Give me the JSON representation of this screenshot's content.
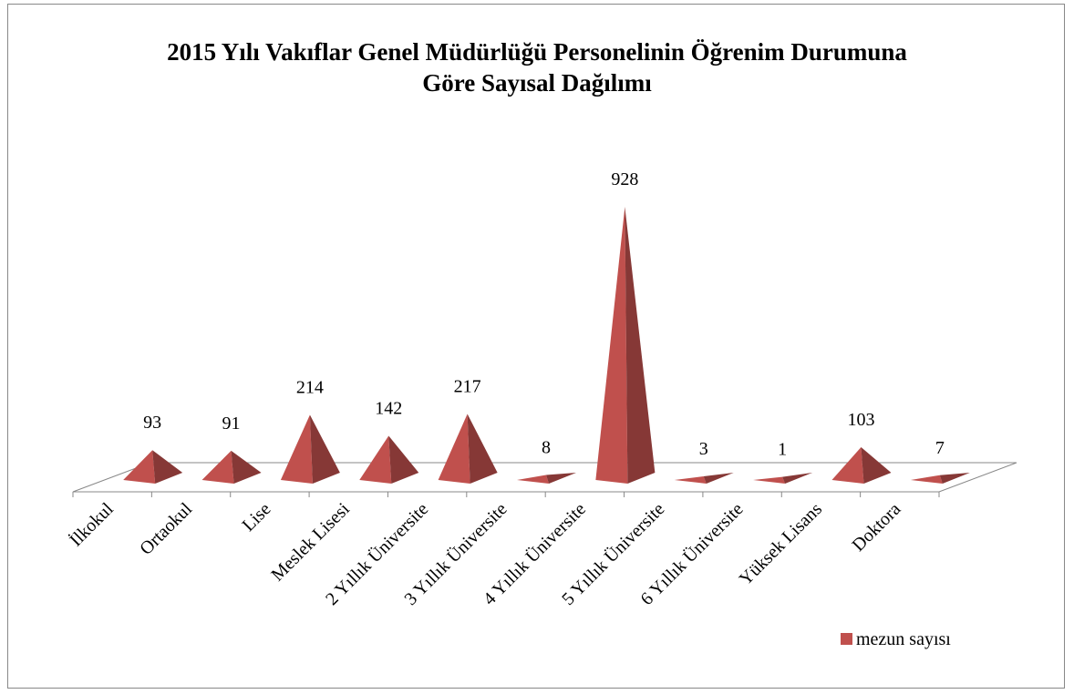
{
  "chart_data": {
    "type": "pyramid",
    "title": "2015 Yılı Vakıflar Genel Müdürlüğü Personelinin Öğrenim Durumuna Göre Sayısal Dağılımı",
    "categories": [
      "İlkokul",
      "Ortaokul",
      "Lise",
      "Meslek Lisesi",
      "2 Yıllık Üniversite",
      "3 Yıllık Üniversite",
      "4 Yıllık Üniversite",
      "5 Yıllık Üniversite",
      "6 Yıllık Üniversite",
      "Yüksek Lisans",
      "Doktora"
    ],
    "series": [
      {
        "name": "mezun sayısı",
        "color": "#c0504d",
        "values": [
          93,
          91,
          214,
          142,
          217,
          8,
          928,
          3,
          1,
          103,
          7
        ]
      }
    ],
    "legend": "bottom-right"
  }
}
